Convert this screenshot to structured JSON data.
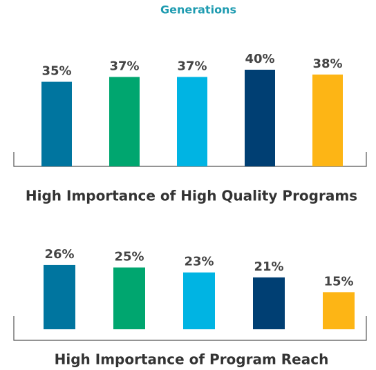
{
  "header": {
    "title": "Generations"
  },
  "chart_data": [
    {
      "type": "bar",
      "title": "High Importance of High Quality Programs",
      "values": [
        35,
        37,
        37,
        40,
        38
      ],
      "value_labels": [
        "35%",
        "37%",
        "37%",
        "40%",
        "38%"
      ],
      "colors": [
        "#00759f",
        "#00a66f",
        "#00b4e3",
        "#003f73",
        "#fdb515"
      ]
    },
    {
      "type": "bar",
      "title": "High Importance of Program Reach",
      "values": [
        26,
        25,
        23,
        21,
        15
      ],
      "value_labels": [
        "26%",
        "25%",
        "23%",
        "21%",
        "15%"
      ],
      "colors": [
        "#00759f",
        "#00a66f",
        "#00b4e3",
        "#003f73",
        "#fdb515"
      ]
    }
  ]
}
